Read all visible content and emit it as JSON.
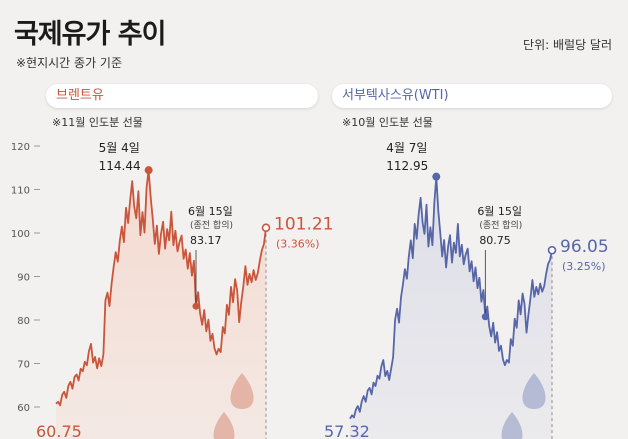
{
  "header": {
    "title": "국제유가 추이",
    "subtitle": "※현지시간 종가 기준",
    "unit": "단위: 배럴당 달러"
  },
  "colors": {
    "brent": "#c9553b",
    "wti": "#5766a8",
    "brent_fill": "#f4d9cf",
    "wti_fill": "#dcdde8"
  },
  "chart_data": [
    {
      "type": "line",
      "name": "브렌트유",
      "note": "※11월 인도분 선물",
      "ylim": [
        55,
        122
      ],
      "yticks": [
        60,
        70,
        80,
        90,
        100,
        110,
        120
      ],
      "tick_labels": [
        "60",
        "70",
        "80",
        "90",
        "100",
        "110",
        "120"
      ],
      "values": [
        60.75,
        61.2,
        60.4,
        62.8,
        63.5,
        62.1,
        64.9,
        65.8,
        64.2,
        66.9,
        67.5,
        66.1,
        68.8,
        68.2,
        70.4,
        69.6,
        72.8,
        74.5,
        70.2,
        71.5,
        68.9,
        71.2,
        69.4,
        72.1,
        84.5,
        86.3,
        83.2,
        88.4,
        92.1,
        95.6,
        93.4,
        98.2,
        101.5,
        97.9,
        105.8,
        102.3,
        107.4,
        111.9,
        106.1,
        103.4,
        109.6,
        99.5,
        104.8,
        100.1,
        110.5,
        114.44,
        108.2,
        103.1,
        97.5,
        101.7,
        95.2,
        99.8,
        102.6,
        96.4,
        100.9,
        98.3,
        104.9,
        97.2,
        100.5,
        95.8,
        97.9,
        99.4,
        94.1,
        96.2,
        91.8,
        95.4,
        90.2,
        93.6,
        83.17,
        86.4,
        81.5,
        78.9,
        82.3,
        77.4,
        80.1,
        75.2,
        76.8,
        73.5,
        72.1,
        73.4,
        72.6,
        78.4,
        76.9,
        83.5,
        81.2,
        87.6,
        84.1,
        89.4,
        86.8,
        79.5,
        84.2,
        87.9,
        92.4,
        88.1,
        90.6,
        88.7,
        91.5,
        89.2,
        90.8,
        93.6,
        96.1,
        97.4,
        101.21
      ],
      "start_label": "60.75",
      "peak": {
        "date": "5월 4일",
        "value": "114.44"
      },
      "mark": {
        "date": "6월 15일",
        "note": "(종전 합의)",
        "value": "83.17"
      },
      "end": {
        "value": "101.21",
        "change": "(3.36%)"
      }
    },
    {
      "type": "line",
      "name": "서부텍사스유(WTI)",
      "note": "※10월 인도분 선물",
      "ylim": [
        55,
        122
      ],
      "values": [
        57.32,
        58.1,
        57.6,
        59.4,
        60.2,
        58.9,
        61.3,
        62.5,
        61.2,
        63.8,
        64.4,
        62.9,
        65.6,
        64.8,
        67.2,
        66.5,
        69.4,
        70.8,
        67.1,
        68.3,
        66.2,
        68.9,
        71.4,
        80.1,
        82.6,
        79.4,
        85.2,
        88.3,
        91.7,
        89.5,
        94.6,
        98.3,
        94.2,
        102.1,
        98.7,
        104.2,
        108.1,
        102.4,
        99.8,
        106.5,
        96.9,
        101.3,
        97.2,
        106.8,
        112.95,
        105.1,
        100.2,
        94.6,
        98.4,
        92.1,
        96.9,
        99.5,
        93.2,
        97.8,
        95.4,
        102.1,
        94.6,
        97.3,
        92.8,
        95.1,
        96.4,
        91.2,
        93.5,
        88.9,
        92.1,
        87.3,
        89.7,
        84.2,
        86.9,
        80.75,
        83.1,
        78.6,
        76.2,
        79.4,
        74.8,
        77.2,
        72.9,
        74.1,
        70.9,
        69.6,
        70.8,
        70.2,
        75.6,
        74.1,
        80.3,
        78.2,
        84.5,
        81.3,
        86.1,
        83.7,
        77.1,
        81.4,
        84.9,
        89.2,
        85.3,
        87.6,
        85.9,
        88.4,
        86.5,
        87.8,
        90.6,
        92.9,
        93.8,
        96.05
      ],
      "start_label": "57.32",
      "peak": {
        "date": "4월 7일",
        "value": "112.95"
      },
      "mark": {
        "date": "6월 15일",
        "note": "(종전 합의)",
        "value": "80.75"
      },
      "end": {
        "value": "96.05",
        "change": "(3.25%)"
      }
    }
  ]
}
